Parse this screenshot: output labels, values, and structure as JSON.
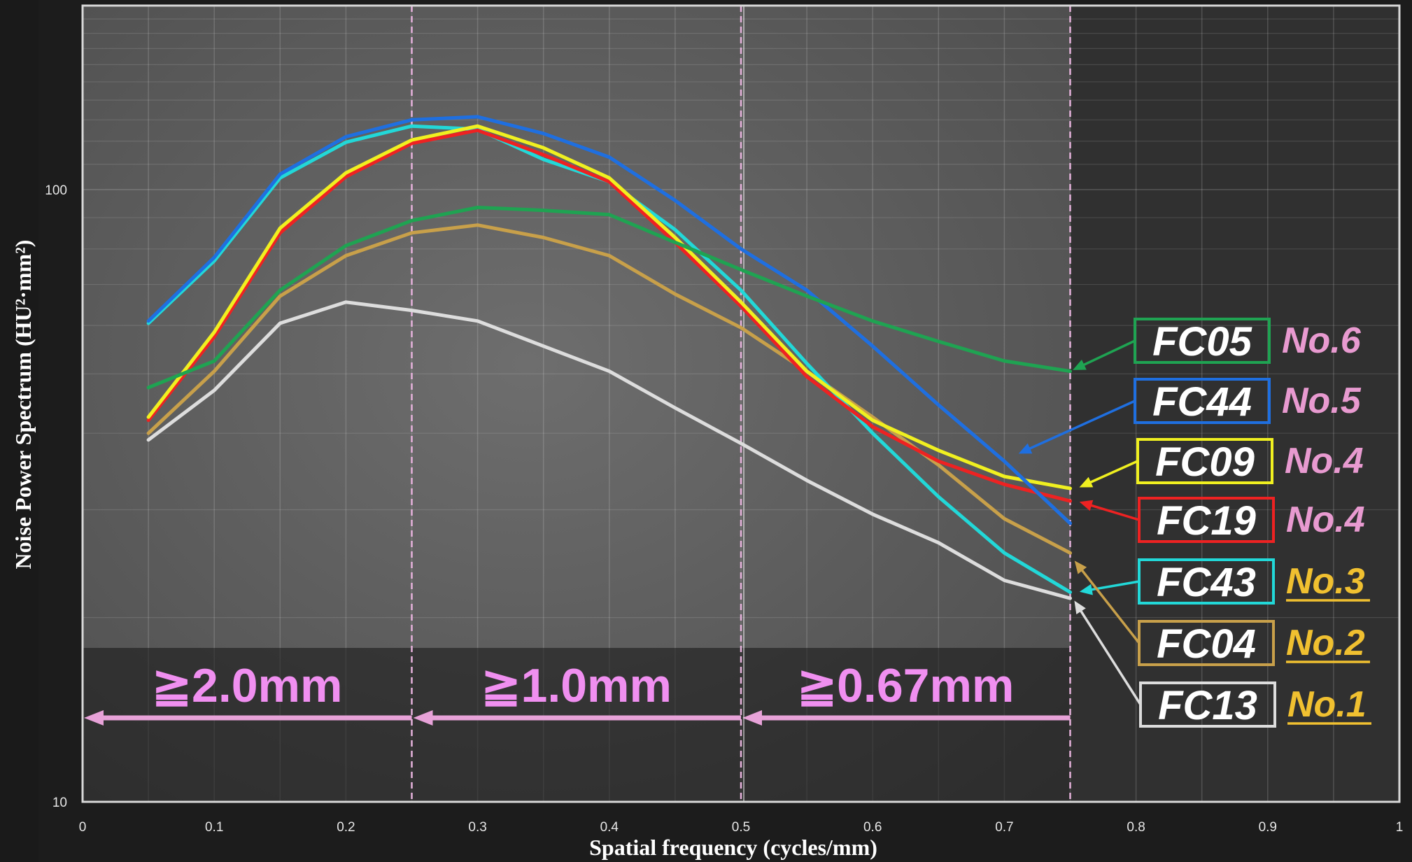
{
  "chart_data": {
    "type": "line",
    "xlabel": "Spatial frequency (cycles/mm)",
    "ylabel": "Noise Power Spectrum (HU²·mm²)",
    "xlim": [
      0,
      1
    ],
    "ylim": [
      10,
      210
    ],
    "y_scale": "log",
    "x_ticks": [
      "0",
      "0.1",
      "0.2",
      "0.3",
      "0.4",
      "0.5",
      "0.6",
      "0.7",
      "0.8",
      "0.9",
      "1"
    ],
    "y_ticks": [
      {
        "value": 10,
        "label": "10"
      },
      {
        "value": 100,
        "label": "100"
      }
    ],
    "grid": true,
    "x": [
      0.05,
      0.1,
      0.15,
      0.2,
      0.25,
      0.3,
      0.35,
      0.4,
      0.45,
      0.5,
      0.55,
      0.6,
      0.65,
      0.7,
      0.75
    ],
    "series": [
      {
        "name": "FC05",
        "rank": "No.6",
        "color": "#1fa352",
        "rank_color": "#e89ad0",
        "values": [
          47.5,
          52.5,
          68.5,
          81,
          89,
          93.5,
          92.5,
          91,
          82,
          74,
          67,
          61,
          56.5,
          52.5,
          50.5
        ]
      },
      {
        "name": "FC44",
        "rank": "No.5",
        "color": "#1f6fe0",
        "rank_color": "#e89ad0",
        "values": [
          61,
          77.5,
          106,
          122,
          130,
          131.5,
          123.5,
          113,
          96,
          80,
          68.5,
          55.5,
          44.5,
          36,
          28.5
        ]
      },
      {
        "name": "FC09",
        "rank": "No.4",
        "color": "#f0f020",
        "rank_color": "#e89ad0",
        "values": [
          42.5,
          58.5,
          86.5,
          106.5,
          120.5,
          127,
          117,
          104.5,
          83.5,
          65.5,
          50.5,
          42,
          37.5,
          34,
          32.5
        ]
      },
      {
        "name": "FC19",
        "rank": "No.4",
        "color": "#ee2222",
        "rank_color": "#e89ad0",
        "values": [
          42,
          57.5,
          85,
          105,
          119,
          125,
          114,
          103,
          82,
          64.5,
          49.5,
          41,
          36,
          33,
          31
        ]
      },
      {
        "name": "FC43",
        "rank": "No.3",
        "color": "#22d8d8",
        "rank_color": "#f0c030",
        "values": [
          60.5,
          76.5,
          104.5,
          119.5,
          127,
          125.5,
          112,
          103,
          86,
          68.5,
          52,
          40,
          31.5,
          25.5,
          22
        ]
      },
      {
        "name": "FC04",
        "rank": "No.2",
        "color": "#c8a04a",
        "rank_color": "#f0c030",
        "values": [
          40,
          50.5,
          67,
          78,
          85,
          87.5,
          83.5,
          78,
          67.5,
          59.5,
          50.5,
          42.5,
          35.5,
          29,
          25.5
        ]
      },
      {
        "name": "FC13",
        "rank": "No.1",
        "color": "#dddddd",
        "rank_color": "#f0c030",
        "values": [
          39,
          47,
          60.5,
          65.5,
          63.5,
          61,
          55.5,
          50.5,
          44,
          38.5,
          33.5,
          29.5,
          26.5,
          23,
          21.5
        ]
      }
    ],
    "zones": [
      {
        "label": "≧2.0mm",
        "from": 0,
        "to": 0.25
      },
      {
        "label": "≧1.0mm",
        "from": 0.25,
        "to": 0.5
      },
      {
        "label": "≧0.67mm",
        "from": 0.5,
        "to": 0.75
      }
    ]
  }
}
